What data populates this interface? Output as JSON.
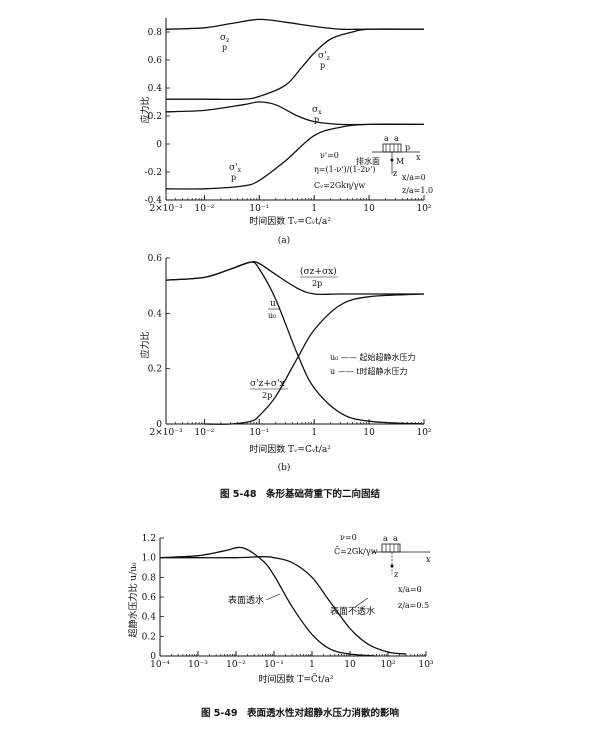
{
  "chart_data": [
    {
      "id": "fig548a",
      "type": "line",
      "x_scale": "log",
      "xlim": [
        0.002,
        100
      ],
      "ylim": [
        -0.4,
        0.9
      ],
      "xticks": [
        0.002,
        0.01,
        0.1,
        1,
        10,
        100
      ],
      "xtick_labels": [
        "2×10⁻³",
        "10⁻²",
        "10⁻¹",
        "1",
        "10",
        "10²"
      ],
      "yticks": [
        0.8,
        0.6,
        0.4,
        0.2,
        0,
        -0.2,
        -0.4
      ],
      "ytick_labels": [
        "0.8",
        "0.6",
        "0.4",
        "0.2",
        "0",
        "-0.2",
        "-0.4"
      ],
      "ylabel": "应力比",
      "xlabel": "时间因数 Tᵥ=Cᵥt/a²",
      "panel_label": "(a)",
      "series": [
        {
          "name": "σz/p",
          "x": [
            0.002,
            0.01,
            0.03,
            0.1,
            0.3,
            1,
            3,
            10,
            100
          ],
          "y": [
            0.82,
            0.83,
            0.86,
            0.89,
            0.87,
            0.84,
            0.82,
            0.82,
            0.82
          ]
        },
        {
          "name": "σz'/p",
          "x": [
            0.002,
            0.01,
            0.05,
            0.1,
            0.3,
            0.6,
            1,
            2,
            5,
            10,
            100
          ],
          "y": [
            0.32,
            0.32,
            0.32,
            0.34,
            0.42,
            0.55,
            0.65,
            0.75,
            0.8,
            0.82,
            0.82
          ]
        },
        {
          "name": "σx/p",
          "x": [
            0.002,
            0.01,
            0.05,
            0.1,
            0.2,
            0.5,
            1,
            3,
            10,
            100
          ],
          "y": [
            0.23,
            0.24,
            0.28,
            0.3,
            0.28,
            0.2,
            0.16,
            0.14,
            0.14,
            0.14
          ]
        },
        {
          "name": "σx'/p",
          "x": [
            0.002,
            0.01,
            0.05,
            0.1,
            0.3,
            1,
            3,
            10,
            100
          ],
          "y": [
            -0.32,
            -0.32,
            -0.3,
            -0.26,
            -0.12,
            0.06,
            0.12,
            0.14,
            0.14
          ]
        }
      ],
      "annotations": [
        "ν'=0",
        "η=(1-ν')/(1-2ν')",
        "Cᵥ=2Gkη/γw",
        "排水面",
        "x/a=0",
        "z/a=1.0"
      ]
    },
    {
      "id": "fig548b",
      "type": "line",
      "x_scale": "log",
      "xlim": [
        0.002,
        100
      ],
      "ylim": [
        0,
        0.6
      ],
      "xticks": [
        0.002,
        0.01,
        0.1,
        1,
        10,
        100
      ],
      "xtick_labels": [
        "2×10⁻³",
        "10⁻²",
        "10⁻¹",
        "1",
        "10",
        "10²"
      ],
      "yticks": [
        0.6,
        0.4,
        0.2,
        0
      ],
      "ytick_labels": [
        "0.6",
        "0.4",
        "0.2",
        "0"
      ],
      "ylabel": "应力比",
      "xlabel": "时间因数 Tᵥ=Cᵥt/a²",
      "panel_label": "(b)",
      "series": [
        {
          "name": "(σz+σx)/2p",
          "x": [
            0.002,
            0.01,
            0.03,
            0.07,
            0.1,
            0.2,
            0.5,
            1,
            3,
            10,
            100
          ],
          "y": [
            0.52,
            0.53,
            0.56,
            0.585,
            0.58,
            0.54,
            0.49,
            0.47,
            0.47,
            0.47,
            0.47
          ]
        },
        {
          "name": "u/u0",
          "x": [
            0.002,
            0.01,
            0.03,
            0.07,
            0.1,
            0.2,
            0.5,
            1,
            3,
            10,
            100
          ],
          "y": [
            0.52,
            0.53,
            0.56,
            0.585,
            0.56,
            0.45,
            0.25,
            0.13,
            0.04,
            0.01,
            0.0
          ]
        },
        {
          "name": "(σz'+σx')/2p",
          "x": [
            0.01,
            0.03,
            0.07,
            0.1,
            0.2,
            0.5,
            1,
            3,
            10,
            100
          ],
          "y": [
            0.0,
            0.0,
            0.01,
            0.03,
            0.1,
            0.24,
            0.34,
            0.43,
            0.46,
            0.47
          ]
        }
      ],
      "legend": [
        {
          "symbol": "u₀",
          "text": "起始超静水压力"
        },
        {
          "symbol": "u",
          "text": "t时超静水压力"
        }
      ]
    },
    {
      "id": "fig549",
      "type": "line",
      "x_scale": "log",
      "xlim": [
        0.0001,
        1000
      ],
      "ylim": [
        0,
        1.2
      ],
      "xticks": [
        0.0001,
        0.001,
        0.01,
        0.1,
        1,
        10,
        100,
        1000
      ],
      "xtick_labels": [
        "10⁻⁴",
        "10⁻³",
        "10⁻²",
        "10⁻¹",
        "1",
        "10",
        "10²",
        "10³"
      ],
      "yticks": [
        1.2,
        1.0,
        0.8,
        0.6,
        0.4,
        0.2,
        0
      ],
      "ytick_labels": [
        "1.2",
        "1.0",
        "0.8",
        "0.6",
        "0.4",
        "0.2",
        "0"
      ],
      "ylabel": "超静水压力比 u/u₀",
      "xlabel": "时间因数 T=C̄t/a²",
      "series": [
        {
          "name": "表面透水",
          "x": [
            0.0001,
            0.001,
            0.005,
            0.015,
            0.05,
            0.1,
            0.3,
            1,
            3,
            10,
            50
          ],
          "y": [
            1.0,
            1.02,
            1.07,
            1.1,
            0.97,
            0.82,
            0.5,
            0.22,
            0.07,
            0.02,
            0.0
          ]
        },
        {
          "name": "表面不透水",
          "x": [
            0.0001,
            0.001,
            0.01,
            0.05,
            0.1,
            0.3,
            1,
            3,
            10,
            30,
            100,
            300
          ],
          "y": [
            1.0,
            1.0,
            1.0,
            1.01,
            1.0,
            0.95,
            0.8,
            0.55,
            0.28,
            0.12,
            0.04,
            0.02
          ]
        }
      ],
      "annotations": [
        "ν=0",
        "C̄=2Gk/γw",
        "x/a=0",
        "z/a=0.5"
      ]
    }
  ],
  "captions": {
    "fig548": "图 5-48　条形基础荷重下的二向固结",
    "fig549": "图 5-49　表面透水性对超静水压力消散的影响"
  }
}
